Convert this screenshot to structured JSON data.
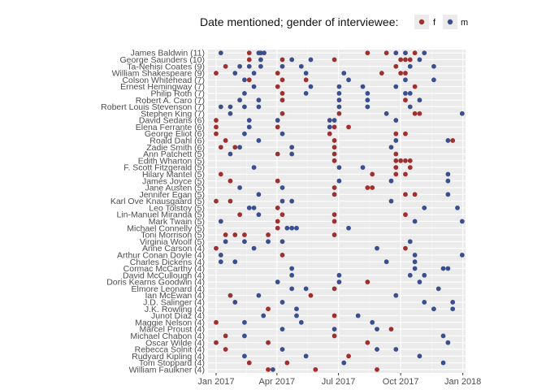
{
  "chart_data": {
    "type": "scatter",
    "legend": {
      "title": "Date mentioned; gender of interviewee:",
      "entries": [
        {
          "label": "f",
          "color": "#A0302F"
        },
        {
          "label": "m",
          "color": "#3B4F8F"
        }
      ],
      "position": "top"
    },
    "x_axis": {
      "scale": "date",
      "range": [
        "2016-12-20",
        "2018-01-05"
      ],
      "ticks": [
        {
          "value": "2017-01-01",
          "label": "Jan 2017"
        },
        {
          "value": "2017-04-01",
          "label": "Apr 2017"
        },
        {
          "value": "2017-07-01",
          "label": "Jul 2017"
        },
        {
          "value": "2017-10-01",
          "label": "Oct 2017"
        },
        {
          "value": "2018-01-01",
          "label": "Jan 2018"
        }
      ]
    },
    "grid": true,
    "panel_background": "#EBEBEB",
    "categories": [
      "James    Baldwin (11)",
      "George Saunders (10)",
      "Ta-Nehisi Coates (9)",
      "William Shakespeare (9)",
      "Colson Whitehead (7)",
      "Ernest Hemingway (7)",
      "Philip Roth (7)",
      "Robert A. Caro (7)",
      "Robert Louis Stevenson (7)",
      "Stephen King (7)",
      "David Sedaris (6)",
      "Elena Ferrante (6)",
      "George Eliot (6)",
      "Roald Dahl (6)",
      "Zadie Smith (6)",
      "Ann Patchett (5)",
      "Edith Wharton (5)",
      "F. Scott Fitzgerald (5)",
      "Hilary Mantel (5)",
      "James Joyce (5)",
      "Jane Austen (5)",
      "Jennifer Egan (5)",
      "Karl Ove Knausgaard (5)",
      "Leo Tolstoy (5)",
      "Lin-Manuel Miranda (5)",
      "Mark Twain (5)",
      "Michael Connelly (5)",
      "Toni Morrison (5)",
      "Virginia Woolf (5)",
      "Anne Carson (4)",
      "Arthur Conan Doyle (4)",
      "Charles Dickens (4)",
      "Cormac McCarthy (4)",
      "David McCullough (4)",
      "Doris Kearns Goodwin (4)",
      "Elmore Leonard (4)",
      "Ian McEwan (4)",
      "J.D. Salinger (4)",
      "J.K. Rowling (4)",
      "Junot Díaz (4)",
      "Maggie Nelson (4)",
      "Marcel Proust (4)",
      "Michael Chabon (4)",
      "Oscar Wilde (4)",
      "Rebecca Solnit (4)",
      "Rudyard Kipling (4)",
      "Tom Stoppard (4)",
      "William Faulkner (4)"
    ],
    "points": [
      [
        0,
        "2017-01-08",
        "m"
      ],
      [
        0,
        "2017-02-19",
        "f"
      ],
      [
        0,
        "2017-03-05",
        "m"
      ],
      [
        0,
        "2017-03-08",
        "m"
      ],
      [
        0,
        "2017-03-13",
        "m"
      ],
      [
        0,
        "2017-08-13",
        "f"
      ],
      [
        0,
        "2017-09-10",
        "f"
      ],
      [
        0,
        "2017-09-24",
        "m"
      ],
      [
        0,
        "2017-10-08",
        "m"
      ],
      [
        0,
        "2017-10-22",
        "f"
      ],
      [
        0,
        "2017-11-05",
        "m"
      ],
      [
        1,
        "2017-02-19",
        "f"
      ],
      [
        1,
        "2017-03-08",
        "m"
      ],
      [
        1,
        "2017-04-09",
        "f"
      ],
      [
        1,
        "2017-04-23",
        "m"
      ],
      [
        1,
        "2017-05-21",
        "m"
      ],
      [
        1,
        "2017-06-25",
        "f"
      ],
      [
        1,
        "2017-10-01",
        "f"
      ],
      [
        1,
        "2017-10-08",
        "f"
      ],
      [
        1,
        "2017-10-15",
        "f"
      ],
      [
        1,
        "2017-10-29",
        "m"
      ],
      [
        2,
        "2017-01-15",
        "f"
      ],
      [
        2,
        "2017-02-05",
        "m"
      ],
      [
        2,
        "2017-02-19",
        "m"
      ],
      [
        2,
        "2017-03-08",
        "m"
      ],
      [
        2,
        "2017-04-09",
        "m"
      ],
      [
        2,
        "2017-05-07",
        "m"
      ],
      [
        2,
        "2017-09-24",
        "f"
      ],
      [
        2,
        "2017-10-15",
        "m"
      ],
      [
        2,
        "2017-11-19",
        "m"
      ],
      [
        3,
        "2017-01-01",
        "f"
      ],
      [
        3,
        "2017-01-29",
        "m"
      ],
      [
        3,
        "2017-02-26",
        "m"
      ],
      [
        3,
        "2017-04-02",
        "f"
      ],
      [
        3,
        "2017-05-14",
        "m"
      ],
      [
        3,
        "2017-07-09",
        "m"
      ],
      [
        3,
        "2017-09-03",
        "f"
      ],
      [
        3,
        "2017-10-01",
        "f"
      ],
      [
        3,
        "2017-10-08",
        "f"
      ],
      [
        4,
        "2017-02-12",
        "m"
      ],
      [
        4,
        "2017-02-19",
        "f"
      ],
      [
        4,
        "2017-04-09",
        "f"
      ],
      [
        4,
        "2017-05-14",
        "f"
      ],
      [
        4,
        "2017-07-16",
        "m"
      ],
      [
        4,
        "2017-10-08",
        "m"
      ],
      [
        4,
        "2017-11-19",
        "m"
      ],
      [
        5,
        "2017-02-26",
        "m"
      ],
      [
        5,
        "2017-04-02",
        "f"
      ],
      [
        5,
        "2017-05-21",
        "m"
      ],
      [
        5,
        "2017-07-02",
        "m"
      ],
      [
        5,
        "2017-08-06",
        "m"
      ],
      [
        5,
        "2017-09-24",
        "m"
      ],
      [
        5,
        "2017-10-22",
        "f"
      ],
      [
        6,
        "2017-02-12",
        "m"
      ],
      [
        6,
        "2017-04-09",
        "f"
      ],
      [
        6,
        "2017-05-14",
        "m"
      ],
      [
        6,
        "2017-07-02",
        "m"
      ],
      [
        6,
        "2017-08-13",
        "m"
      ],
      [
        6,
        "2017-10-08",
        "m"
      ],
      [
        6,
        "2017-10-15",
        "m"
      ],
      [
        7,
        "2017-02-05",
        "m"
      ],
      [
        7,
        "2017-03-05",
        "m"
      ],
      [
        7,
        "2017-04-09",
        "f"
      ],
      [
        7,
        "2017-07-02",
        "m"
      ],
      [
        7,
        "2017-08-13",
        "m"
      ],
      [
        7,
        "2017-10-08",
        "f"
      ],
      [
        7,
        "2017-10-29",
        "m"
      ],
      [
        8,
        "2017-01-08",
        "m"
      ],
      [
        8,
        "2017-01-22",
        "m"
      ],
      [
        8,
        "2017-02-12",
        "m"
      ],
      [
        8,
        "2017-03-05",
        "m"
      ],
      [
        8,
        "2017-07-02",
        "m"
      ],
      [
        8,
        "2017-08-13",
        "m"
      ],
      [
        8,
        "2017-10-15",
        "m"
      ],
      [
        9,
        "2017-01-22",
        "m"
      ],
      [
        9,
        "2017-04-09",
        "f"
      ],
      [
        9,
        "2017-07-02",
        "f"
      ],
      [
        9,
        "2017-09-10",
        "m"
      ],
      [
        9,
        "2017-10-22",
        "f"
      ],
      [
        9,
        "2017-10-29",
        "f"
      ],
      [
        9,
        "2017-12-31",
        "m"
      ],
      [
        10,
        "2017-01-01",
        "f"
      ],
      [
        10,
        "2017-02-19",
        "m"
      ],
      [
        10,
        "2017-04-02",
        "m"
      ],
      [
        10,
        "2017-06-18",
        "m"
      ],
      [
        10,
        "2017-06-25",
        "m"
      ],
      [
        10,
        "2017-09-24",
        "m"
      ],
      [
        11,
        "2017-01-01",
        "f"
      ],
      [
        11,
        "2017-02-19",
        "m"
      ],
      [
        11,
        "2017-04-02",
        "f"
      ],
      [
        11,
        "2017-06-18",
        "m"
      ],
      [
        11,
        "2017-06-25",
        "f"
      ],
      [
        11,
        "2017-07-16",
        "f"
      ],
      [
        12,
        "2017-01-01",
        "f"
      ],
      [
        12,
        "2017-02-12",
        "m"
      ],
      [
        12,
        "2017-04-09",
        "m"
      ],
      [
        12,
        "2017-06-18",
        "f"
      ],
      [
        12,
        "2017-09-24",
        "f"
      ],
      [
        12,
        "2017-10-08",
        "f"
      ],
      [
        13,
        "2017-01-15",
        "f"
      ],
      [
        13,
        "2017-03-05",
        "m"
      ],
      [
        13,
        "2017-06-25",
        "f"
      ],
      [
        13,
        "2017-09-24",
        "m"
      ],
      [
        13,
        "2017-12-10",
        "m"
      ],
      [
        13,
        "2017-12-17",
        "f"
      ],
      [
        14,
        "2017-01-08",
        "f"
      ],
      [
        14,
        "2017-01-29",
        "f"
      ],
      [
        14,
        "2017-02-05",
        "m"
      ],
      [
        14,
        "2017-04-23",
        "m"
      ],
      [
        14,
        "2017-06-25",
        "f"
      ],
      [
        14,
        "2017-09-17",
        "m"
      ],
      [
        15,
        "2017-01-22",
        "m"
      ],
      [
        15,
        "2017-04-02",
        "f"
      ],
      [
        15,
        "2017-04-23",
        "m"
      ],
      [
        15,
        "2017-06-25",
        "f"
      ],
      [
        15,
        "2017-09-24",
        "f"
      ],
      [
        16,
        "2017-06-25",
        "f"
      ],
      [
        16,
        "2017-09-24",
        "f"
      ],
      [
        16,
        "2017-10-01",
        "f"
      ],
      [
        16,
        "2017-10-08",
        "f"
      ],
      [
        16,
        "2017-10-15",
        "f"
      ],
      [
        17,
        "2017-02-26",
        "m"
      ],
      [
        17,
        "2017-07-02",
        "m"
      ],
      [
        17,
        "2017-08-06",
        "m"
      ],
      [
        17,
        "2017-09-24",
        "f"
      ],
      [
        17,
        "2017-10-15",
        "f"
      ],
      [
        18,
        "2017-01-08",
        "f"
      ],
      [
        18,
        "2017-08-20",
        "f"
      ],
      [
        18,
        "2017-09-24",
        "f"
      ],
      [
        18,
        "2017-10-08",
        "f"
      ],
      [
        18,
        "2017-12-10",
        "m"
      ],
      [
        19,
        "2017-01-22",
        "f"
      ],
      [
        19,
        "2017-04-02",
        "f"
      ],
      [
        19,
        "2017-07-02",
        "m"
      ],
      [
        19,
        "2017-09-17",
        "m"
      ],
      [
        19,
        "2017-12-10",
        "m"
      ],
      [
        20,
        "2017-02-05",
        "m"
      ],
      [
        20,
        "2017-04-09",
        "m"
      ],
      [
        20,
        "2017-06-25",
        "f"
      ],
      [
        20,
        "2017-08-13",
        "f"
      ],
      [
        20,
        "2017-08-20",
        "f"
      ],
      [
        21,
        "2017-03-05",
        "m"
      ],
      [
        21,
        "2017-06-25",
        "f"
      ],
      [
        21,
        "2017-10-08",
        "f"
      ],
      [
        21,
        "2017-10-22",
        "f"
      ],
      [
        21,
        "2017-12-10",
        "m"
      ],
      [
        22,
        "2017-01-01",
        "f"
      ],
      [
        22,
        "2017-01-22",
        "f"
      ],
      [
        22,
        "2017-04-09",
        "m"
      ],
      [
        22,
        "2017-04-23",
        "m"
      ],
      [
        22,
        "2017-09-17",
        "m"
      ],
      [
        23,
        "2017-02-19",
        "m"
      ],
      [
        23,
        "2017-02-26",
        "m"
      ],
      [
        23,
        "2017-04-02",
        "f"
      ],
      [
        23,
        "2017-11-05",
        "m"
      ],
      [
        23,
        "2017-12-24",
        "m"
      ],
      [
        24,
        "2017-02-05",
        "f"
      ],
      [
        24,
        "2017-03-05",
        "m"
      ],
      [
        24,
        "2017-04-09",
        "f"
      ],
      [
        24,
        "2017-06-25",
        "f"
      ],
      [
        24,
        "2017-10-08",
        "f"
      ],
      [
        25,
        "2017-01-08",
        "m"
      ],
      [
        25,
        "2017-04-02",
        "f"
      ],
      [
        25,
        "2017-06-25",
        "f"
      ],
      [
        25,
        "2017-10-22",
        "m"
      ],
      [
        25,
        "2017-12-31",
        "m"
      ],
      [
        26,
        "2017-04-02",
        "f"
      ],
      [
        26,
        "2017-04-16",
        "m"
      ],
      [
        26,
        "2017-04-23",
        "m"
      ],
      [
        26,
        "2017-04-30",
        "m"
      ],
      [
        26,
        "2017-07-16",
        "m"
      ],
      [
        27,
        "2017-01-15",
        "f"
      ],
      [
        27,
        "2017-01-29",
        "f"
      ],
      [
        27,
        "2017-02-12",
        "f"
      ],
      [
        27,
        "2017-03-19",
        "f"
      ],
      [
        27,
        "2017-06-25",
        "f"
      ],
      [
        28,
        "2017-01-15",
        "m"
      ],
      [
        28,
        "2017-02-12",
        "m"
      ],
      [
        28,
        "2017-03-19",
        "m"
      ],
      [
        28,
        "2017-04-09",
        "m"
      ],
      [
        28,
        "2017-10-15",
        "m"
      ],
      [
        29,
        "2017-01-01",
        "f"
      ],
      [
        29,
        "2017-02-26",
        "m"
      ],
      [
        29,
        "2017-08-27",
        "m"
      ],
      [
        29,
        "2017-10-08",
        "f"
      ],
      [
        30,
        "2017-01-08",
        "m"
      ],
      [
        30,
        "2017-04-09",
        "f"
      ],
      [
        30,
        "2017-10-22",
        "m"
      ],
      [
        30,
        "2017-12-31",
        "m"
      ],
      [
        31,
        "2017-01-08",
        "m"
      ],
      [
        31,
        "2017-01-29",
        "m"
      ],
      [
        31,
        "2017-09-10",
        "m"
      ],
      [
        31,
        "2017-10-22",
        "m"
      ],
      [
        32,
        "2017-04-23",
        "m"
      ],
      [
        32,
        "2017-10-22",
        "m"
      ],
      [
        32,
        "2017-12-03",
        "m"
      ],
      [
        32,
        "2017-12-10",
        "m"
      ],
      [
        33,
        "2017-04-23",
        "m"
      ],
      [
        33,
        "2017-07-02",
        "m"
      ],
      [
        33,
        "2017-10-15",
        "m"
      ],
      [
        33,
        "2017-11-05",
        "m"
      ],
      [
        34,
        "2017-04-02",
        "m"
      ],
      [
        34,
        "2017-07-02",
        "m"
      ],
      [
        34,
        "2017-08-13",
        "f"
      ],
      [
        34,
        "2017-10-29",
        "m"
      ],
      [
        35,
        "2017-04-23",
        "m"
      ],
      [
        35,
        "2017-05-14",
        "m"
      ],
      [
        35,
        "2017-06-25",
        "f"
      ],
      [
        35,
        "2017-11-26",
        "m"
      ],
      [
        36,
        "2017-01-22",
        "f"
      ],
      [
        36,
        "2017-03-05",
        "m"
      ],
      [
        36,
        "2017-05-21",
        "f"
      ],
      [
        36,
        "2017-09-24",
        "m"
      ],
      [
        37,
        "2017-01-29",
        "m"
      ],
      [
        37,
        "2017-04-09",
        "m"
      ],
      [
        37,
        "2017-11-05",
        "m"
      ],
      [
        37,
        "2017-12-17",
        "m"
      ],
      [
        38,
        "2017-03-19",
        "f"
      ],
      [
        38,
        "2017-04-30",
        "m"
      ],
      [
        38,
        "2017-11-19",
        "m"
      ],
      [
        38,
        "2017-12-17",
        "m"
      ],
      [
        39,
        "2017-03-12",
        "m"
      ],
      [
        39,
        "2017-04-30",
        "m"
      ],
      [
        39,
        "2017-06-25",
        "f"
      ],
      [
        39,
        "2017-07-30",
        "m"
      ],
      [
        40,
        "2017-01-01",
        "f"
      ],
      [
        40,
        "2017-02-12",
        "m"
      ],
      [
        40,
        "2017-05-07",
        "m"
      ],
      [
        40,
        "2017-08-20",
        "m"
      ],
      [
        41,
        "2017-04-09",
        "m"
      ],
      [
        41,
        "2017-06-25",
        "m"
      ],
      [
        41,
        "2017-08-27",
        "m"
      ],
      [
        41,
        "2017-09-17",
        "f"
      ],
      [
        42,
        "2017-01-15",
        "f"
      ],
      [
        42,
        "2017-02-12",
        "m"
      ],
      [
        42,
        "2017-06-25",
        "f"
      ],
      [
        42,
        "2017-12-03",
        "m"
      ],
      [
        43,
        "2017-01-01",
        "f"
      ],
      [
        43,
        "2017-03-19",
        "f"
      ],
      [
        43,
        "2017-08-13",
        "f"
      ],
      [
        43,
        "2017-12-10",
        "m"
      ],
      [
        44,
        "2017-01-15",
        "f"
      ],
      [
        44,
        "2017-04-09",
        "m"
      ],
      [
        44,
        "2017-08-27",
        "m"
      ],
      [
        44,
        "2017-09-24",
        "m"
      ],
      [
        45,
        "2017-02-12",
        "m"
      ],
      [
        45,
        "2017-05-14",
        "m"
      ],
      [
        45,
        "2017-07-16",
        "f"
      ],
      [
        45,
        "2017-10-29",
        "m"
      ],
      [
        46,
        "2017-02-19",
        "f"
      ],
      [
        46,
        "2017-04-16",
        "f"
      ],
      [
        46,
        "2017-07-09",
        "m"
      ],
      [
        46,
        "2017-12-03",
        "m"
      ],
      [
        47,
        "2017-03-19",
        "f"
      ],
      [
        47,
        "2017-03-26",
        "m"
      ],
      [
        47,
        "2017-05-28",
        "f"
      ],
      [
        47,
        "2017-08-27",
        "f"
      ]
    ]
  }
}
